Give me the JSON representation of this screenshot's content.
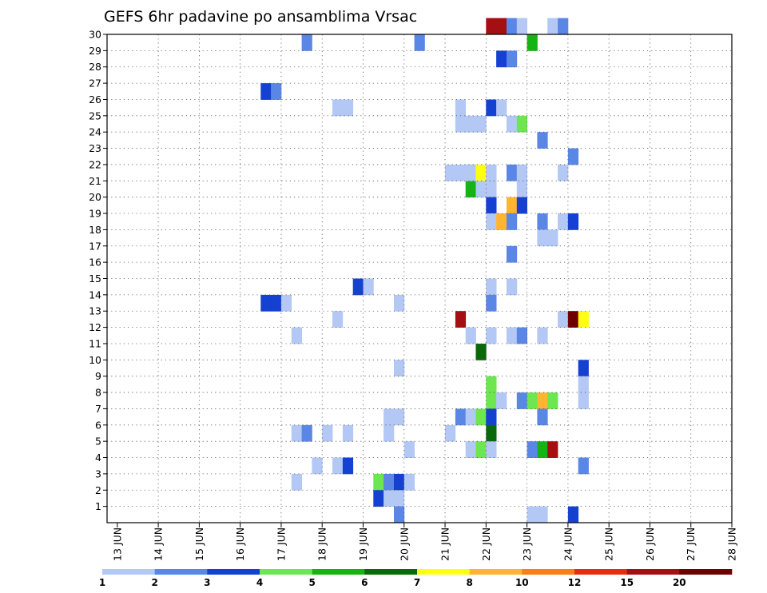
{
  "chart_data": {
    "type": "heatmap",
    "title": "GEFS 6hr padavine po ansamblima Vrsac",
    "x_tick_labels": [
      "13 JUN",
      "14 JUN",
      "15 JUN",
      "16 JUN",
      "17 JUN",
      "18 JUN",
      "19 JUN",
      "20 JUN",
      "21 JUN",
      "22 JUN",
      "23 JUN",
      "24 JUN",
      "25 JUN",
      "26 JUN",
      "27 JUN",
      "28 JUN"
    ],
    "x_range_hours": [
      0,
      366
    ],
    "y_tick_labels": [
      "1",
      "2",
      "3",
      "4",
      "5",
      "6",
      "7",
      "8",
      "9",
      "10",
      "11",
      "12",
      "13",
      "14",
      "15",
      "16",
      "17",
      "18",
      "19",
      "20",
      "21",
      "22",
      "23",
      "24",
      "25",
      "26",
      "27",
      "28",
      "29",
      "30"
    ],
    "y_range": [
      0,
      30
    ],
    "grid": true,
    "legend_position": "bottom",
    "colorbar": {
      "colors": [
        "#b4c8f5",
        "#5a87e6",
        "#1441d2",
        "#6ee650",
        "#14b414",
        "#0a690a",
        "#ffff14",
        "#ffb432",
        "#ff7d14",
        "#e62d14",
        "#a50f14",
        "#6e0000"
      ],
      "labels": [
        "1",
        "2",
        "3",
        "4",
        "5",
        "6",
        "7",
        "8",
        "10",
        "12",
        "15",
        "20"
      ]
    },
    "cells": [
      [
        222,
        30,
        10
      ],
      [
        228,
        30,
        10
      ],
      [
        234,
        30,
        1
      ],
      [
        240,
        30,
        0
      ],
      [
        258,
        30,
        0
      ],
      [
        264,
        30,
        1
      ],
      [
        114,
        29,
        1
      ],
      [
        180,
        29,
        1
      ],
      [
        246,
        29,
        4
      ],
      [
        228,
        28,
        2
      ],
      [
        234,
        28,
        1
      ],
      [
        90,
        26,
        2
      ],
      [
        96,
        26,
        1
      ],
      [
        132,
        25,
        0
      ],
      [
        138,
        25,
        0
      ],
      [
        204,
        25,
        0
      ],
      [
        222,
        25,
        2
      ],
      [
        228,
        25,
        0
      ],
      [
        204,
        24,
        0
      ],
      [
        210,
        24,
        0
      ],
      [
        216,
        24,
        0
      ],
      [
        234,
        24,
        0
      ],
      [
        240,
        24,
        3
      ],
      [
        252,
        23,
        1
      ],
      [
        270,
        22,
        1
      ],
      [
        210,
        21,
        4
      ],
      [
        210,
        20,
        4
      ],
      [
        198,
        21,
        0
      ],
      [
        204,
        21,
        0
      ],
      [
        216,
        20,
        0
      ],
      [
        210,
        21,
        0
      ],
      [
        216,
        21,
        6
      ],
      [
        222,
        21,
        0
      ],
      [
        234,
        21,
        1
      ],
      [
        240,
        21,
        0
      ],
      [
        264,
        21,
        0
      ],
      [
        216,
        20,
        0
      ],
      [
        222,
        20,
        0
      ],
      [
        240,
        20,
        0
      ],
      [
        222,
        19,
        2
      ],
      [
        234,
        19,
        7
      ],
      [
        240,
        19,
        2
      ],
      [
        222,
        18,
        0
      ],
      [
        228,
        18,
        7
      ],
      [
        234,
        18,
        1
      ],
      [
        252,
        18,
        1
      ],
      [
        264,
        18,
        0
      ],
      [
        270,
        18,
        2
      ],
      [
        252,
        17,
        0
      ],
      [
        258,
        17,
        0
      ],
      [
        234,
        16,
        1
      ],
      [
        144,
        14,
        2
      ],
      [
        150,
        14,
        0
      ],
      [
        222,
        14,
        0
      ],
      [
        234,
        14,
        0
      ],
      [
        90,
        13,
        2
      ],
      [
        96,
        13,
        2
      ],
      [
        102,
        13,
        0
      ],
      [
        168,
        13,
        0
      ],
      [
        222,
        13,
        1
      ],
      [
        132,
        12,
        0
      ],
      [
        204,
        12,
        10
      ],
      [
        264,
        12,
        0
      ],
      [
        270,
        12,
        11
      ],
      [
        276,
        12,
        6
      ],
      [
        108,
        11,
        0
      ],
      [
        210,
        11,
        0
      ],
      [
        222,
        11,
        0
      ],
      [
        234,
        11,
        0
      ],
      [
        240,
        11,
        1
      ],
      [
        252,
        11,
        0
      ],
      [
        216,
        10,
        5
      ],
      [
        168,
        9,
        0
      ],
      [
        276,
        9,
        2
      ],
      [
        222,
        8,
        3
      ],
      [
        276,
        8,
        0
      ],
      [
        222,
        7,
        3
      ],
      [
        228,
        7,
        0
      ],
      [
        240,
        7,
        1
      ],
      [
        246,
        7,
        3
      ],
      [
        252,
        7,
        7
      ],
      [
        258,
        7,
        3
      ],
      [
        276,
        7,
        0
      ],
      [
        162,
        6,
        0
      ],
      [
        168,
        6,
        0
      ],
      [
        204,
        6,
        1
      ],
      [
        210,
        6,
        0
      ],
      [
        216,
        6,
        3
      ],
      [
        222,
        6,
        2
      ],
      [
        252,
        6,
        1
      ],
      [
        108,
        5,
        0
      ],
      [
        114,
        5,
        1
      ],
      [
        126,
        5,
        0
      ],
      [
        138,
        5,
        0
      ],
      [
        162,
        5,
        0
      ],
      [
        198,
        5,
        0
      ],
      [
        222,
        5,
        5
      ],
      [
        174,
        4,
        0
      ],
      [
        210,
        4,
        0
      ],
      [
        216,
        4,
        3
      ],
      [
        222,
        4,
        0
      ],
      [
        246,
        4,
        1
      ],
      [
        252,
        4,
        4
      ],
      [
        258,
        4,
        10
      ],
      [
        120,
        3,
        0
      ],
      [
        132,
        3,
        0
      ],
      [
        138,
        3,
        2
      ],
      [
        276,
        3,
        1
      ],
      [
        108,
        2,
        0
      ],
      [
        156,
        2,
        3
      ],
      [
        162,
        2,
        1
      ],
      [
        168,
        2,
        2
      ],
      [
        174,
        2,
        0
      ],
      [
        156,
        1,
        2
      ],
      [
        162,
        1,
        0
      ],
      [
        168,
        1,
        0
      ],
      [
        168,
        0,
        1
      ],
      [
        246,
        0,
        0
      ],
      [
        252,
        0,
        0
      ],
      [
        270,
        0,
        2
      ]
    ]
  }
}
